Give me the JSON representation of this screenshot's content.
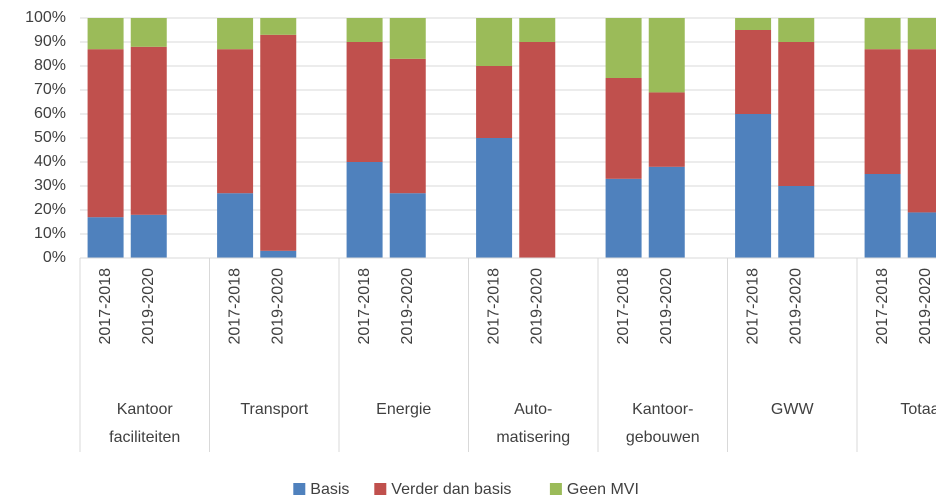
{
  "chart_data": {
    "type": "stacked_bar",
    "categories": [
      "2017-2018",
      "2019-2020",
      "2017-2018",
      "2019-2020",
      "2017-2018",
      "2019-2020",
      "2017-2018",
      "2019-2020",
      "2017-2018",
      "2019-2020",
      "2017-2018",
      "2019-2020",
      "2017-2018",
      "2019-2020"
    ],
    "groups": [
      [
        "Kantoor",
        "faciliteiten"
      ],
      [
        "Transport"
      ],
      [
        "Energie"
      ],
      [
        "Auto-",
        "matisering"
      ],
      [
        "Kantoor-",
        "gebouwen"
      ],
      [
        "GWW"
      ],
      [
        "Totaal"
      ]
    ],
    "series": [
      {
        "name": "Basis",
        "color": "#4f81bd",
        "values": [
          17,
          18,
          27,
          3,
          40,
          27,
          50,
          0,
          33,
          38,
          60,
          30,
          35,
          19
        ]
      },
      {
        "name": "Verder dan basis",
        "color": "#c0504d",
        "values": [
          70,
          70,
          60,
          90,
          50,
          56,
          30,
          90,
          42,
          31,
          35,
          60,
          52,
          68
        ]
      },
      {
        "name": "Geen MVI",
        "color": "#9bbb59",
        "values": [
          13,
          12,
          13,
          7,
          10,
          17,
          20,
          10,
          25,
          31,
          5,
          10,
          13,
          13
        ]
      }
    ],
    "ylim": [
      0,
      100
    ],
    "yticks": [
      {
        "value": 0,
        "label": "0%"
      },
      {
        "value": 10,
        "label": "10%"
      },
      {
        "value": 20,
        "label": "20%"
      },
      {
        "value": 30,
        "label": "30%"
      },
      {
        "value": 40,
        "label": "40%"
      },
      {
        "value": 50,
        "label": "50%"
      },
      {
        "value": 60,
        "label": "60%"
      },
      {
        "value": 70,
        "label": "70%"
      },
      {
        "value": 80,
        "label": "80%"
      },
      {
        "value": 90,
        "label": "90%"
      },
      {
        "value": 100,
        "label": "100%"
      }
    ],
    "grid": true,
    "legend": "bottom"
  }
}
